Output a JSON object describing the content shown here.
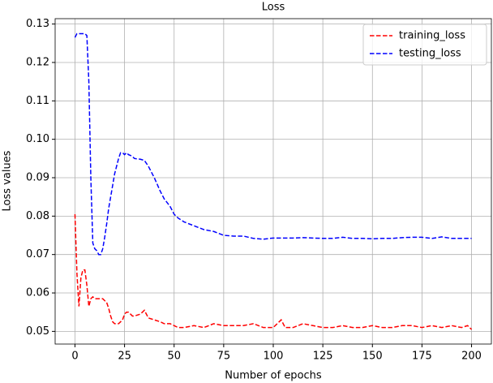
{
  "chart_data": {
    "type": "line",
    "title": "Loss",
    "x_label": "Number of epochs",
    "y_label": "Loss values",
    "x": [
      0,
      1,
      2,
      3,
      4,
      5,
      6,
      7,
      8,
      9,
      10,
      11,
      12,
      13,
      14,
      15,
      16,
      17,
      18,
      19,
      20,
      21,
      22,
      23,
      24,
      25,
      26,
      27,
      28,
      29,
      30,
      33,
      35,
      37,
      40,
      43,
      45,
      48,
      50,
      52,
      55,
      60,
      65,
      70,
      75,
      80,
      85,
      90,
      95,
      100,
      104,
      106,
      110,
      115,
      120,
      125,
      130,
      135,
      140,
      145,
      150,
      155,
      160,
      165,
      170,
      175,
      180,
      185,
      190,
      195,
      198,
      200
    ],
    "series": [
      {
        "name": "training_loss",
        "color": "#ff0000",
        "values": [
          0.0805,
          0.065,
          0.0565,
          0.064,
          0.066,
          0.066,
          0.062,
          0.0565,
          0.0585,
          0.059,
          0.0585,
          0.0585,
          0.0585,
          0.0585,
          0.0585,
          0.058,
          0.0575,
          0.056,
          0.054,
          0.0525,
          0.052,
          0.052,
          0.052,
          0.0525,
          0.053,
          0.0545,
          0.055,
          0.055,
          0.0545,
          0.054,
          0.054,
          0.0545,
          0.0555,
          0.0535,
          0.053,
          0.0525,
          0.052,
          0.052,
          0.0515,
          0.051,
          0.051,
          0.0515,
          0.051,
          0.052,
          0.0515,
          0.0515,
          0.0515,
          0.052,
          0.051,
          0.051,
          0.053,
          0.051,
          0.051,
          0.052,
          0.0515,
          0.051,
          0.051,
          0.0515,
          0.051,
          0.051,
          0.0515,
          0.051,
          0.051,
          0.0515,
          0.0515,
          0.051,
          0.0515,
          0.051,
          0.0515,
          0.051,
          0.0515,
          0.0505
        ]
      },
      {
        "name": "testing_loss",
        "color": "#0000ff",
        "values": [
          0.1265,
          0.1275,
          0.1275,
          0.1275,
          0.1275,
          0.1275,
          0.127,
          0.115,
          0.09,
          0.073,
          0.0715,
          0.071,
          0.07,
          0.07,
          0.0715,
          0.0745,
          0.078,
          0.082,
          0.085,
          0.088,
          0.091,
          0.093,
          0.095,
          0.0965,
          0.0965,
          0.096,
          0.0965,
          0.096,
          0.0958,
          0.0955,
          0.095,
          0.0948,
          0.0945,
          0.093,
          0.09,
          0.0865,
          0.0845,
          0.0825,
          0.0805,
          0.0795,
          0.0785,
          0.0775,
          0.0765,
          0.076,
          0.075,
          0.0748,
          0.0748,
          0.0742,
          0.074,
          0.0743,
          0.0743,
          0.0743,
          0.0743,
          0.0744,
          0.0743,
          0.0742,
          0.0742,
          0.0745,
          0.0742,
          0.0742,
          0.0741,
          0.0742,
          0.0742,
          0.0744,
          0.0745,
          0.0745,
          0.0742,
          0.0746,
          0.0742,
          0.0742,
          0.0742,
          0.0742
        ]
      }
    ],
    "xlim": [
      -10,
      210
    ],
    "xticks": [
      0,
      25,
      50,
      75,
      100,
      125,
      150,
      175,
      200
    ],
    "ylim": [
      0.0467,
      0.1314
    ],
    "yticks": [
      0.05,
      0.06,
      0.07,
      0.08,
      0.09,
      {
        "value": 0.1,
        "label": "0.10"
      },
      0.11,
      0.12,
      0.13
    ],
    "grid": true,
    "legend": "upper right"
  }
}
